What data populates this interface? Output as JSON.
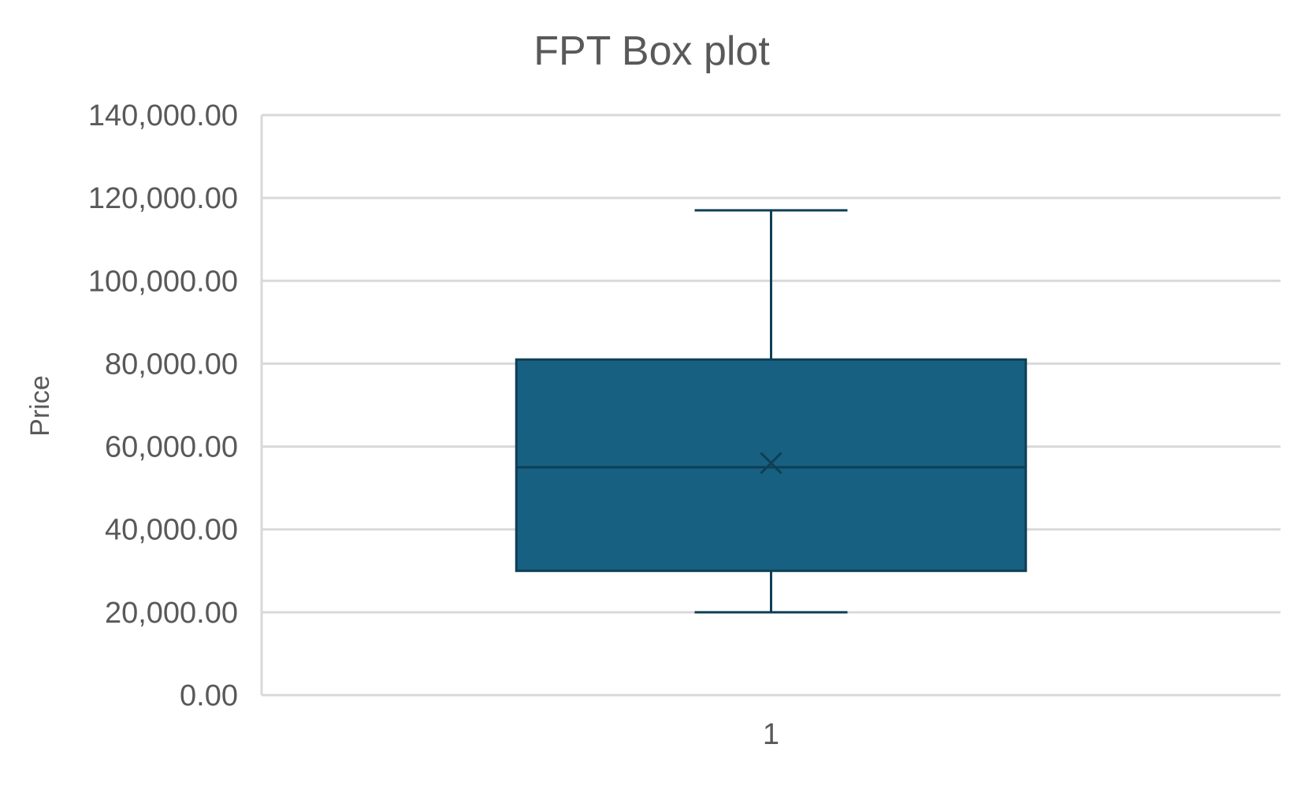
{
  "chart_data": {
    "type": "box",
    "title": "FPT Box plot",
    "xlabel": "",
    "ylabel": "Price",
    "categories": [
      "1"
    ],
    "ylim": [
      0,
      140000
    ],
    "yticks": [
      0,
      20000,
      40000,
      60000,
      80000,
      100000,
      120000,
      140000
    ],
    "ytick_labels": [
      "0.00",
      "20,000.00",
      "40,000.00",
      "60,000.00",
      "80,000.00",
      "100,000.00",
      "120,000.00",
      "140,000.00"
    ],
    "grid": true,
    "legend": "none",
    "box": {
      "category": "1",
      "min": 20000,
      "q1": 30000,
      "median": 55000,
      "mean": 56000,
      "q3": 81000,
      "max": 117000
    },
    "colors": {
      "box_fill": "#176082",
      "box_stroke": "#0f3f55",
      "whisker": "#0f3f55",
      "grid": "#d9d9d9",
      "text": "#595959"
    }
  }
}
